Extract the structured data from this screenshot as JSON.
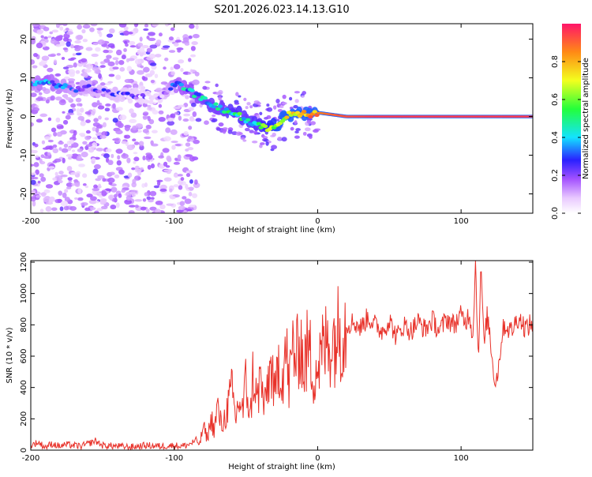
{
  "title": "S201.2026.023.14.13.G10",
  "chart_data": [
    {
      "type": "heatmap",
      "xlabel": "Height of straight line (km)",
      "ylabel": "Frequency (Hz)",
      "xlim": [
        -200,
        150
      ],
      "ylim": [
        -25,
        24
      ],
      "xticks": [
        -200,
        -100,
        0,
        100
      ],
      "xtick_labels": [
        "-200",
        "-100",
        "0",
        "100"
      ],
      "yticks": [
        -20,
        -10,
        0,
        10,
        20
      ],
      "ytick_labels": [
        "-20",
        "-10",
        "0",
        "10",
        "20"
      ],
      "colorbar": {
        "label": "Normalized spectral amplitude",
        "range": [
          0.0,
          1.0
        ],
        "ticks": [
          0.0,
          0.2,
          0.4,
          0.6,
          0.8
        ],
        "tick_labels": [
          "0.0",
          "0.2",
          "0.4",
          "0.6",
          "0.8"
        ]
      },
      "ridge": {
        "x": [
          -200,
          -190,
          -180,
          -170,
          -160,
          -150,
          -140,
          -130,
          -120,
          -110,
          -100,
          -95,
          -90,
          -85,
          -80,
          -75,
          -70,
          -65,
          -60,
          -55,
          -50,
          -45,
          -40,
          -35,
          -30,
          -25,
          -20,
          -15,
          -10,
          -5,
          0,
          10,
          20,
          40,
          60,
          80,
          100,
          110,
          120,
          130,
          150
        ],
        "freq": [
          8.5,
          9.0,
          8.0,
          7.0,
          7.5,
          6.5,
          6.0,
          5.5,
          5.0,
          4.5,
          8.5,
          8.0,
          7.0,
          5.5,
          4.5,
          3.5,
          2.5,
          1.5,
          1.0,
          0.5,
          -1.0,
          -2.0,
          -2.5,
          -3.0,
          -2.5,
          -1.0,
          0.5,
          0.5,
          1.0,
          0.5,
          1.0,
          0.5,
          0.0,
          0.0,
          0.0,
          0.0,
          0.0,
          0.0,
          0.0,
          0.0,
          0.0
        ],
        "amplitude": [
          0.25,
          0.35,
          0.28,
          0.22,
          0.22,
          0.18,
          0.18,
          0.15,
          0.12,
          0.12,
          0.3,
          0.35,
          0.38,
          0.4,
          0.42,
          0.45,
          0.42,
          0.45,
          0.48,
          0.5,
          0.45,
          0.48,
          0.5,
          0.55,
          0.6,
          0.65,
          0.72,
          0.75,
          0.78,
          0.82,
          0.85,
          0.9,
          0.92,
          0.95,
          0.95,
          0.95,
          0.95,
          0.95,
          0.95,
          0.95,
          0.95
        ]
      }
    },
    {
      "type": "line",
      "xlabel": "Height of straight line (km)",
      "ylabel": "SNR (10 * v/v)",
      "xlim": [
        -200,
        150
      ],
      "ylim": [
        0,
        1210
      ],
      "xticks": [
        -200,
        -100,
        0,
        100
      ],
      "xtick_labels": [
        "-200",
        "-100",
        "0",
        "100"
      ],
      "yticks": [
        0,
        200,
        400,
        600,
        800,
        1000,
        1200
      ],
      "ytick_labels": [
        "0",
        "200",
        "400",
        "600",
        "800",
        "1000",
        "1200"
      ],
      "color": "#e8322a",
      "series": [
        {
          "name": "SNR",
          "x": [
            -200,
            -195,
            -190,
            -185,
            -180,
            -175,
            -170,
            -165,
            -160,
            -155,
            -150,
            -140,
            -130,
            -120,
            -110,
            -100,
            -95,
            -90,
            -85,
            -82,
            -80,
            -77,
            -74,
            -72,
            -70,
            -67,
            -65,
            -62,
            -60,
            -57,
            -55,
            -52,
            -50,
            -47,
            -45,
            -42,
            -40,
            -37,
            -35,
            -32,
            -30,
            -27,
            -25,
            -22,
            -20,
            -17,
            -15,
            -12,
            -10,
            -7,
            -5,
            -3,
            -1,
            0,
            3,
            6,
            10,
            15,
            20,
            25,
            30,
            35,
            40,
            45,
            50,
            55,
            60,
            65,
            70,
            75,
            80,
            85,
            90,
            95,
            100,
            103,
            106,
            108,
            110,
            112,
            114,
            116,
            118,
            120,
            122,
            124,
            126,
            128,
            130,
            135,
            140,
            145,
            150
          ],
          "y": [
            30,
            50,
            20,
            40,
            25,
            35,
            30,
            25,
            40,
            60,
            30,
            25,
            20,
            30,
            25,
            30,
            25,
            35,
            60,
            40,
            150,
            80,
            200,
            120,
            280,
            150,
            200,
            300,
            380,
            200,
            320,
            250,
            450,
            200,
            500,
            300,
            480,
            250,
            420,
            550,
            300,
            600,
            450,
            650,
            400,
            700,
            550,
            750,
            500,
            650,
            600,
            480,
            550,
            520,
            620,
            680,
            700,
            760,
            800,
            820,
            780,
            850,
            800,
            760,
            830,
            720,
            800,
            760,
            820,
            770,
            830,
            760,
            840,
            800,
            860,
            820,
            880,
            700,
            1200,
            600,
            1180,
            650,
            860,
            750,
            550,
            430,
            520,
            700,
            800,
            760,
            850,
            780,
            810
          ]
        }
      ]
    }
  ]
}
